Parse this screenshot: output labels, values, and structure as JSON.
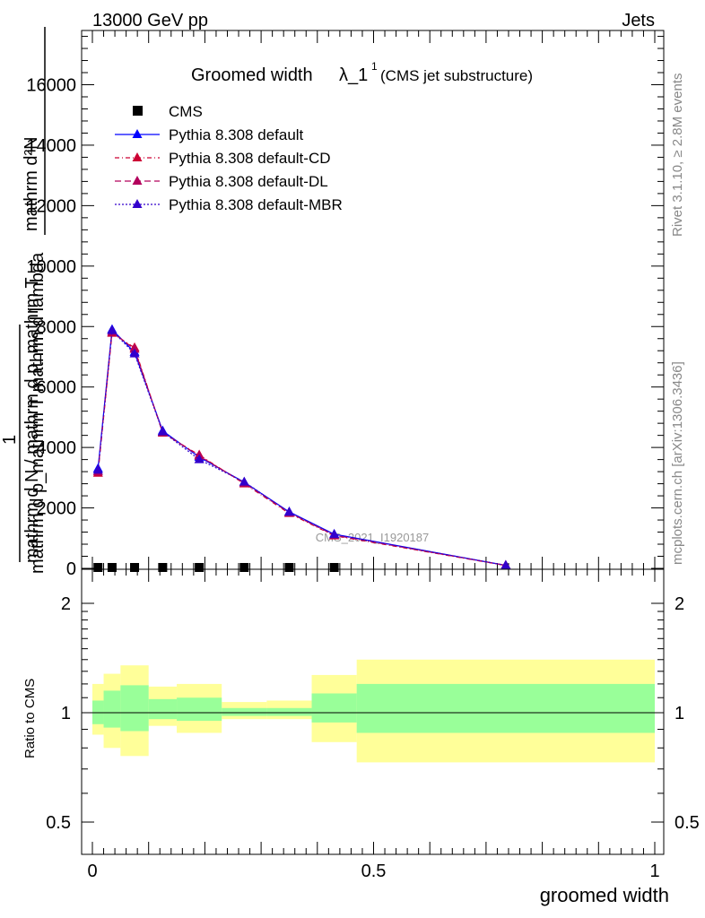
{
  "header": {
    "left": "13000 GeV pp",
    "right": "Jets"
  },
  "side_labels": {
    "rivet": "Rivet 3.1.10, ≥ 2.8M events",
    "mcplots": "mcplots.cern.ch [arXiv:1306.3436]"
  },
  "watermark": "CMS_2021_I1920187",
  "colors": {
    "band_inner": "#99ff99",
    "band_outer": "#ffff99",
    "default": "#0000ff",
    "cd": "#cc0033",
    "dl": "#b3005c",
    "mbr": "#3300cc",
    "data": "#000000"
  },
  "chart_data": [
    {
      "type": "line",
      "title_main": "Groomed width",
      "title_lambda": "λ_1",
      "title_sup": "1",
      "title_sub": "(CMS jet substructure)",
      "ylabel_top": "mathrm d²N",
      "ylabel_top2": "mathrm d p_mathrm T mathrm d lambda",
      "ylabel_inner": "mathrm d N / mathrm d p_mathrm T",
      "ylabel_one": "1",
      "ylim": [
        0,
        18000
      ],
      "yticks": [
        0,
        2000,
        4000,
        6000,
        8000,
        10000,
        12000,
        14000,
        16000
      ],
      "ytick_labels": [
        "0",
        "2000",
        "4000",
        "6000",
        "8000",
        "10000",
        "12000",
        "14000",
        "16000"
      ],
      "xlim": [
        -0.02,
        1.0
      ],
      "legend_position": "top-left",
      "series": [
        {
          "name": "CMS",
          "style": "data",
          "x": [
            0.01,
            0.035,
            0.075,
            0.125,
            0.19,
            0.27,
            0.35,
            0.43
          ],
          "values": [
            0,
            0,
            0,
            0,
            0,
            0,
            0,
            0
          ]
        },
        {
          "name": "Pythia 8.308 default",
          "style": "default",
          "x": [
            0.01,
            0.035,
            0.075,
            0.125,
            0.19,
            0.27,
            0.35,
            0.43,
            0.735
          ],
          "values": [
            3300,
            7900,
            7150,
            4550,
            3680,
            2850,
            1870,
            1130,
            100
          ]
        },
        {
          "name": "Pythia 8.308 default-CD",
          "style": "cd",
          "x": [
            0.01,
            0.035,
            0.075,
            0.125,
            0.19,
            0.27,
            0.35,
            0.43,
            0.735
          ],
          "values": [
            3150,
            7780,
            7300,
            4480,
            3750,
            2800,
            1820,
            1080,
            95
          ]
        },
        {
          "name": "Pythia 8.308 default-DL",
          "style": "dl",
          "x": [
            0.01,
            0.035,
            0.075,
            0.125,
            0.19,
            0.27,
            0.35,
            0.43,
            0.735
          ],
          "values": [
            3200,
            7820,
            7250,
            4500,
            3720,
            2820,
            1840,
            1100,
            98
          ]
        },
        {
          "name": "Pythia 8.308 default-MBR",
          "style": "mbr",
          "x": [
            0.01,
            0.035,
            0.075,
            0.125,
            0.19,
            0.27,
            0.35,
            0.43,
            0.735
          ],
          "values": [
            3250,
            7870,
            7100,
            4520,
            3600,
            2860,
            1860,
            1120,
            100
          ]
        }
      ]
    },
    {
      "type": "area",
      "ylabel": "Ratio to CMS",
      "xlabel": "groomed width",
      "ylim": [
        0.4,
        2.3
      ],
      "log_y": true,
      "yticks": [
        0.5,
        1,
        2
      ],
      "ytick_labels": [
        "0.5",
        "1",
        "2"
      ],
      "xlim": [
        -0.02,
        1.0
      ],
      "xticks": [
        0,
        0.5,
        1
      ],
      "xtick_labels": [
        "0",
        "0.5",
        "1"
      ],
      "bins": [
        {
          "lo": 0.0,
          "hi": 0.02,
          "inner": [
            0.93,
            1.08
          ],
          "outer": [
            0.87,
            1.2
          ]
        },
        {
          "lo": 0.02,
          "hi": 0.05,
          "inner": [
            0.91,
            1.15
          ],
          "outer": [
            0.8,
            1.28
          ]
        },
        {
          "lo": 0.05,
          "hi": 0.1,
          "inner": [
            0.89,
            1.19
          ],
          "outer": [
            0.76,
            1.35
          ]
        },
        {
          "lo": 0.1,
          "hi": 0.15,
          "inner": [
            0.96,
            1.09
          ],
          "outer": [
            0.92,
            1.18
          ]
        },
        {
          "lo": 0.15,
          "hi": 0.23,
          "inner": [
            0.95,
            1.1
          ],
          "outer": [
            0.88,
            1.2
          ]
        },
        {
          "lo": 0.23,
          "hi": 0.31,
          "inner": [
            0.98,
            1.03
          ],
          "outer": [
            0.96,
            1.07
          ]
        },
        {
          "lo": 0.31,
          "hi": 0.39,
          "inner": [
            0.98,
            1.03
          ],
          "outer": [
            0.96,
            1.08
          ]
        },
        {
          "lo": 0.39,
          "hi": 0.47,
          "inner": [
            0.94,
            1.13
          ],
          "outer": [
            0.83,
            1.27
          ]
        },
        {
          "lo": 0.47,
          "hi": 1.0,
          "inner": [
            0.88,
            1.2
          ],
          "outer": [
            0.73,
            1.4
          ]
        }
      ]
    }
  ]
}
